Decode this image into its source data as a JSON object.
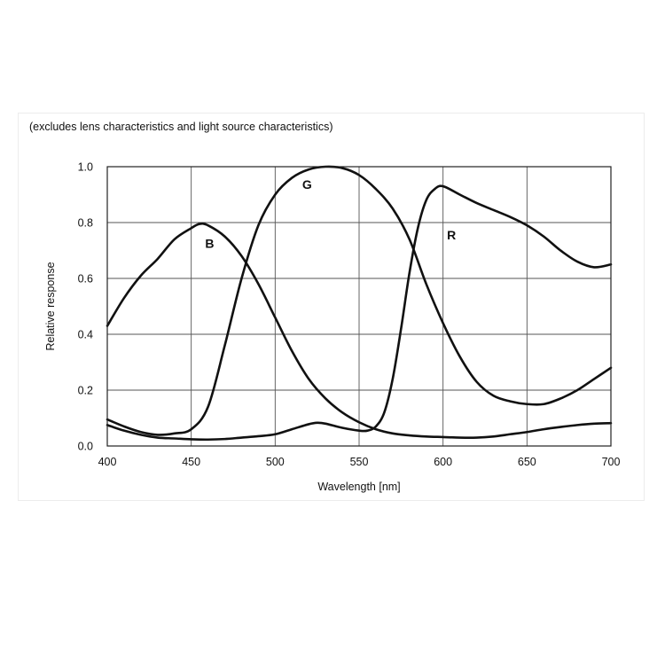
{
  "chart_data": {
    "type": "line",
    "note": "(excludes lens characteristics and light source characteristics)",
    "xlabel": "Wavelength [nm]",
    "ylabel": "Relative response",
    "xlim": [
      400,
      700
    ],
    "ylim": [
      0,
      1.0
    ],
    "xticks": [
      400,
      450,
      500,
      550,
      600,
      650,
      700
    ],
    "yticks": [
      "0.0",
      "0.2",
      "0.4",
      "0.6",
      "0.8",
      "1.0"
    ],
    "grid": true,
    "series": [
      {
        "name": "B",
        "label_pos": [
          461,
          0.71
        ],
        "points": [
          [
            400,
            0.43
          ],
          [
            410,
            0.53
          ],
          [
            420,
            0.61
          ],
          [
            430,
            0.67
          ],
          [
            440,
            0.74
          ],
          [
            450,
            0.78
          ],
          [
            455,
            0.795
          ],
          [
            460,
            0.79
          ],
          [
            470,
            0.75
          ],
          [
            480,
            0.68
          ],
          [
            490,
            0.58
          ],
          [
            500,
            0.46
          ],
          [
            510,
            0.34
          ],
          [
            520,
            0.24
          ],
          [
            530,
            0.17
          ],
          [
            540,
            0.12
          ],
          [
            550,
            0.085
          ],
          [
            560,
            0.06
          ],
          [
            570,
            0.045
          ],
          [
            580,
            0.038
          ],
          [
            590,
            0.034
          ],
          [
            600,
            0.032
          ],
          [
            610,
            0.03
          ],
          [
            620,
            0.03
          ],
          [
            630,
            0.034
          ],
          [
            640,
            0.042
          ],
          [
            650,
            0.05
          ],
          [
            660,
            0.06
          ],
          [
            670,
            0.068
          ],
          [
            680,
            0.075
          ],
          [
            690,
            0.08
          ],
          [
            700,
            0.082
          ]
        ]
      },
      {
        "name": "G",
        "label_pos": [
          519,
          0.92
        ],
        "points": [
          [
            400,
            0.095
          ],
          [
            410,
            0.07
          ],
          [
            420,
            0.05
          ],
          [
            430,
            0.04
          ],
          [
            440,
            0.045
          ],
          [
            450,
            0.06
          ],
          [
            460,
            0.14
          ],
          [
            470,
            0.36
          ],
          [
            480,
            0.6
          ],
          [
            490,
            0.79
          ],
          [
            500,
            0.9
          ],
          [
            510,
            0.96
          ],
          [
            520,
            0.99
          ],
          [
            530,
            1.0
          ],
          [
            540,
            0.995
          ],
          [
            550,
            0.97
          ],
          [
            560,
            0.92
          ],
          [
            570,
            0.85
          ],
          [
            580,
            0.74
          ],
          [
            590,
            0.58
          ],
          [
            600,
            0.44
          ],
          [
            610,
            0.32
          ],
          [
            620,
            0.23
          ],
          [
            630,
            0.18
          ],
          [
            640,
            0.16
          ],
          [
            650,
            0.15
          ],
          [
            660,
            0.15
          ],
          [
            670,
            0.17
          ],
          [
            680,
            0.2
          ],
          [
            690,
            0.24
          ],
          [
            700,
            0.28
          ]
        ]
      },
      {
        "name": "R",
        "label_pos": [
          605,
          0.74
        ],
        "points": [
          [
            400,
            0.075
          ],
          [
            410,
            0.055
          ],
          [
            420,
            0.04
          ],
          [
            430,
            0.03
          ],
          [
            440,
            0.027
          ],
          [
            450,
            0.024
          ],
          [
            460,
            0.023
          ],
          [
            470,
            0.025
          ],
          [
            480,
            0.03
          ],
          [
            490,
            0.035
          ],
          [
            500,
            0.042
          ],
          [
            510,
            0.06
          ],
          [
            520,
            0.078
          ],
          [
            525,
            0.083
          ],
          [
            530,
            0.08
          ],
          [
            540,
            0.065
          ],
          [
            550,
            0.055
          ],
          [
            555,
            0.055
          ],
          [
            560,
            0.07
          ],
          [
            565,
            0.12
          ],
          [
            570,
            0.24
          ],
          [
            575,
            0.42
          ],
          [
            580,
            0.62
          ],
          [
            585,
            0.78
          ],
          [
            590,
            0.88
          ],
          [
            595,
            0.92
          ],
          [
            600,
            0.93
          ],
          [
            610,
            0.9
          ],
          [
            620,
            0.87
          ],
          [
            630,
            0.845
          ],
          [
            640,
            0.82
          ],
          [
            650,
            0.79
          ],
          [
            660,
            0.75
          ],
          [
            670,
            0.7
          ],
          [
            680,
            0.66
          ],
          [
            690,
            0.64
          ],
          [
            700,
            0.65
          ]
        ]
      }
    ]
  }
}
